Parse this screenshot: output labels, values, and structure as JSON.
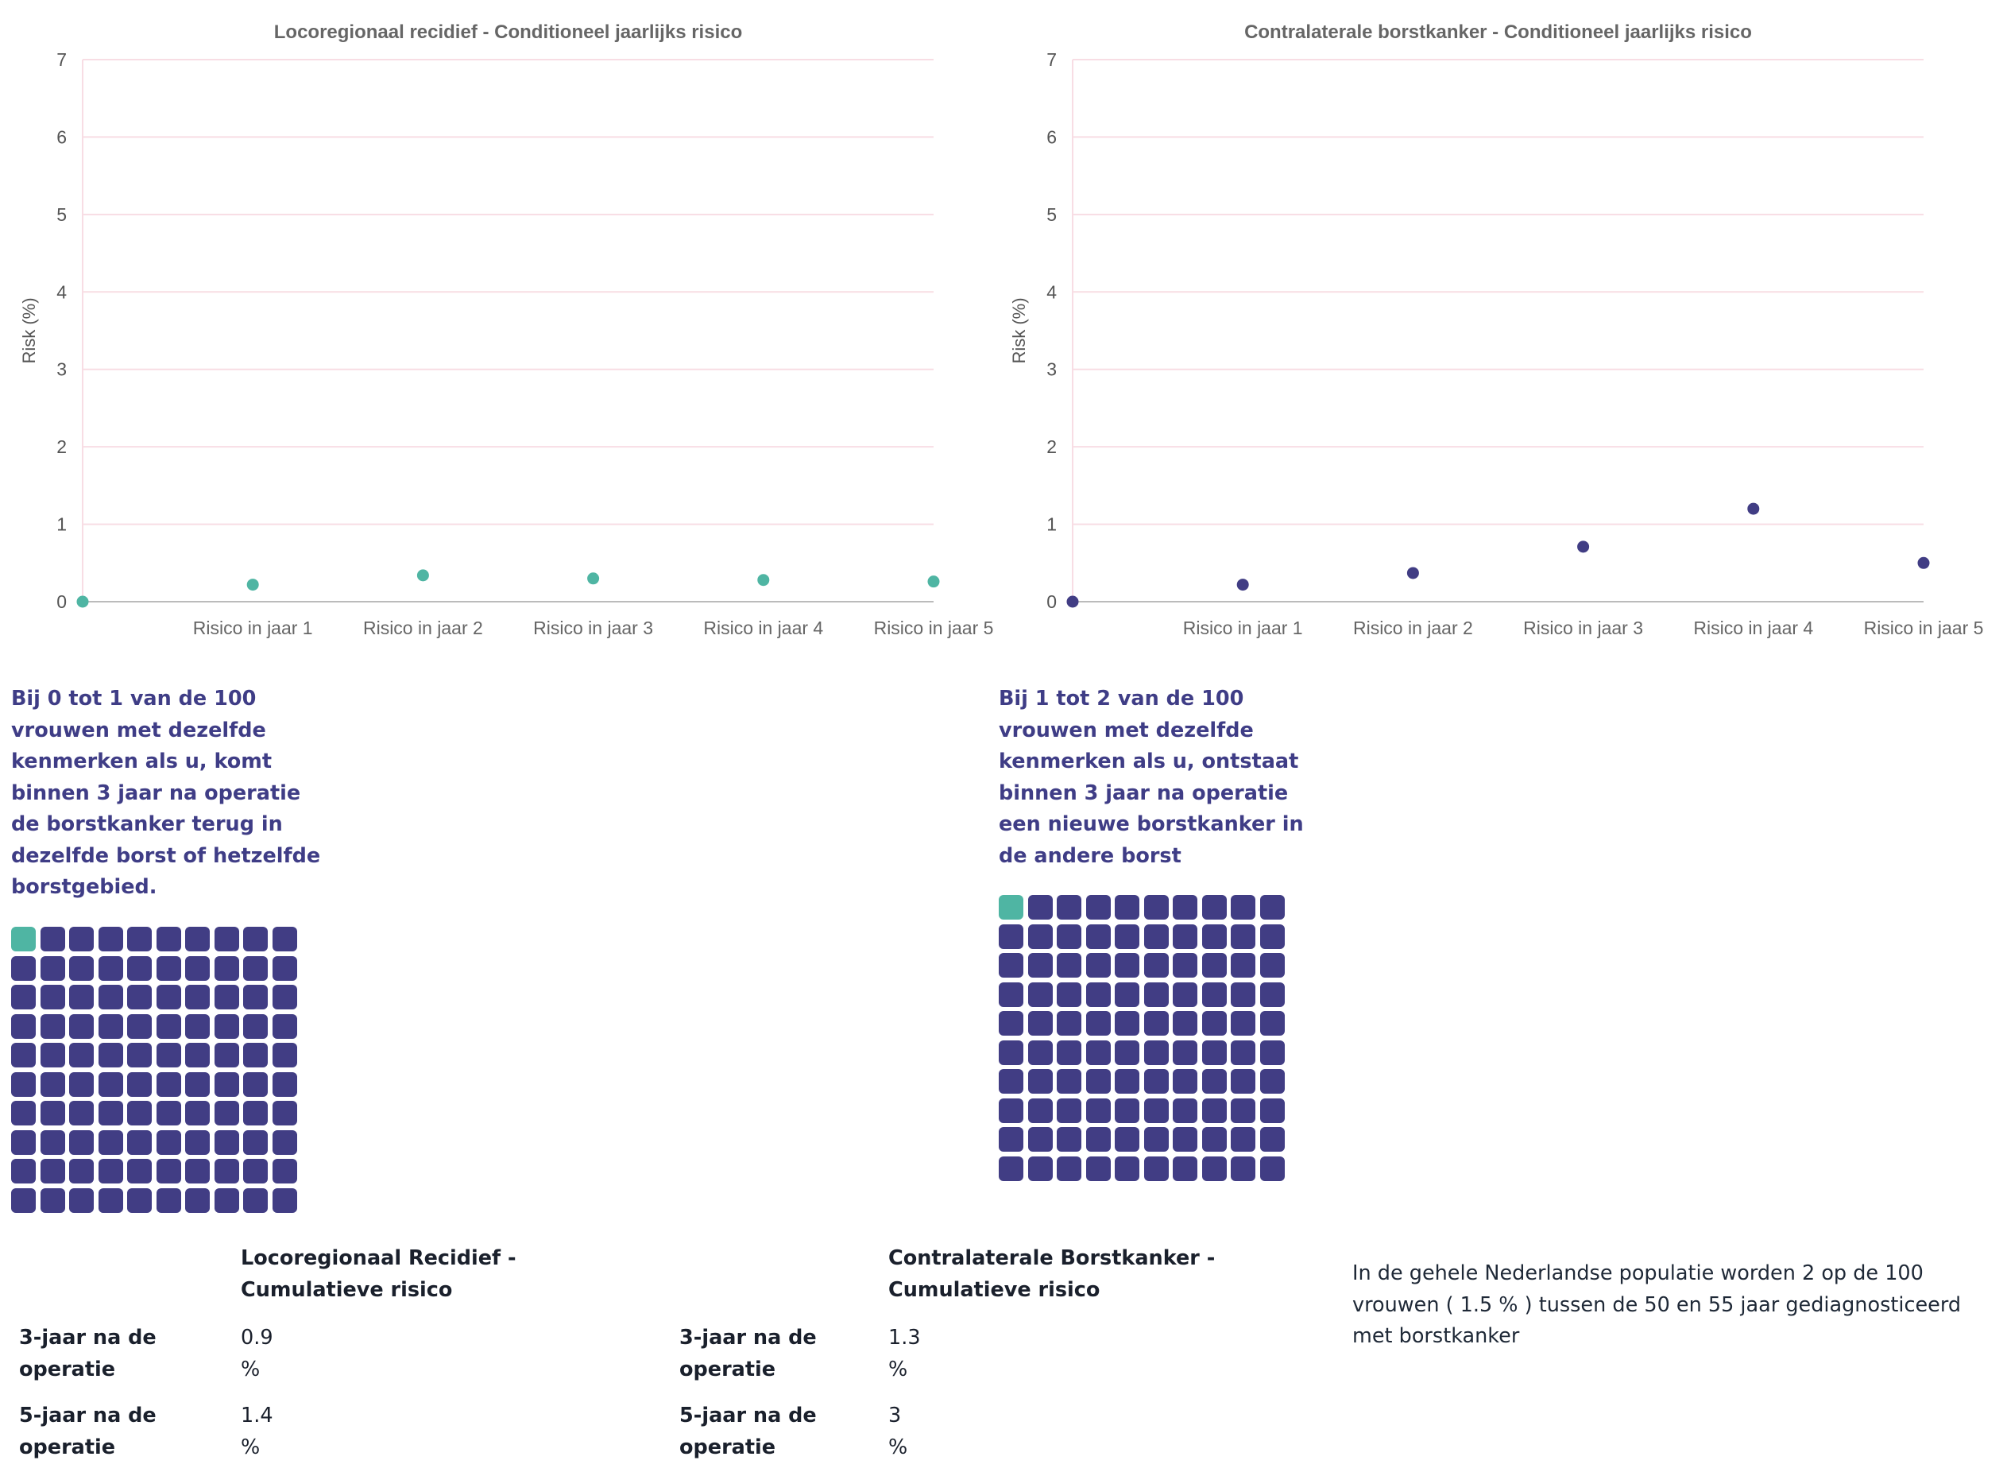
{
  "chart_data": [
    {
      "type": "scatter",
      "title": "Locoregionaal recidief - Conditioneel jaarlijks risico",
      "ylabel": "Risk (%)",
      "xlabel": "",
      "categories": [
        "",
        "Risico in jaar 1",
        "Risico in jaar 2",
        "Risico in jaar 3",
        "Risico in jaar 4",
        "Risico in jaar 5"
      ],
      "values": [
        0,
        0.22,
        0.34,
        0.3,
        0.28,
        0.26
      ],
      "ylim": [
        0,
        7
      ],
      "yticks": [
        "0",
        "1",
        "2",
        "3",
        "4",
        "5",
        "6",
        "7"
      ],
      "grid": true,
      "point_color": "#4fb5a3"
    },
    {
      "type": "scatter",
      "title": "Contralaterale borstkanker - Conditioneel jaarlijks risico",
      "ylabel": "Risk (%)",
      "xlabel": "",
      "categories": [
        "",
        "Risico in jaar 1",
        "Risico in jaar 2",
        "Risico in jaar 3",
        "Risico in jaar 4",
        "Risico in jaar 5"
      ],
      "values": [
        0,
        0.22,
        0.37,
        0.71,
        1.2,
        0.5
      ],
      "ylim": [
        0,
        7
      ],
      "yticks": [
        "0",
        "1",
        "2",
        "3",
        "4",
        "5",
        "6",
        "7"
      ],
      "grid": true,
      "point_color": "#413d84"
    }
  ],
  "left_panel": {
    "text": "Bij 0 tot 1 van de 100 vrouwen met dezelfde kenmerken als u, komt binnen 3 jaar na operatie de borstkanker terug in dezelfde borst of hetzelfde borstgebied.",
    "waffle": {
      "total": 100,
      "highlighted": 1
    }
  },
  "right_panel": {
    "text": "Bij 1 tot 2 van de 100 vrouwen met dezelfde kenmerken als u, ontstaat binnen 3 jaar na operatie een nieuwe borstkanker in de andere borst",
    "waffle": {
      "total": 100,
      "highlighted": 1
    }
  },
  "colors": {
    "accent_teal": "#4fb5a3",
    "accent_purple": "#413d84",
    "grid_pink": "#f8dde4"
  },
  "table_left": {
    "header": "Locoregionaal Recidief - Cumulatieve risico",
    "rows": [
      {
        "label": "3-jaar na de operatie",
        "value": "0.9 %"
      },
      {
        "label": "5-jaar na de operatie",
        "value": "1.4 %"
      }
    ]
  },
  "table_right": {
    "header": "Contralaterale Borstkanker - Cumulatieve risico",
    "rows": [
      {
        "label": "3-jaar na de operatie",
        "value": "1.3 %"
      },
      {
        "label": "5-jaar na de operatie",
        "value": "3 %"
      }
    ]
  },
  "population_note": "In de gehele Nederlandse populatie worden 2 op de 100 vrouwen ( 1.5 % ) tussen de 50 en 55 jaar gediagnosticeerd met borstkanker"
}
